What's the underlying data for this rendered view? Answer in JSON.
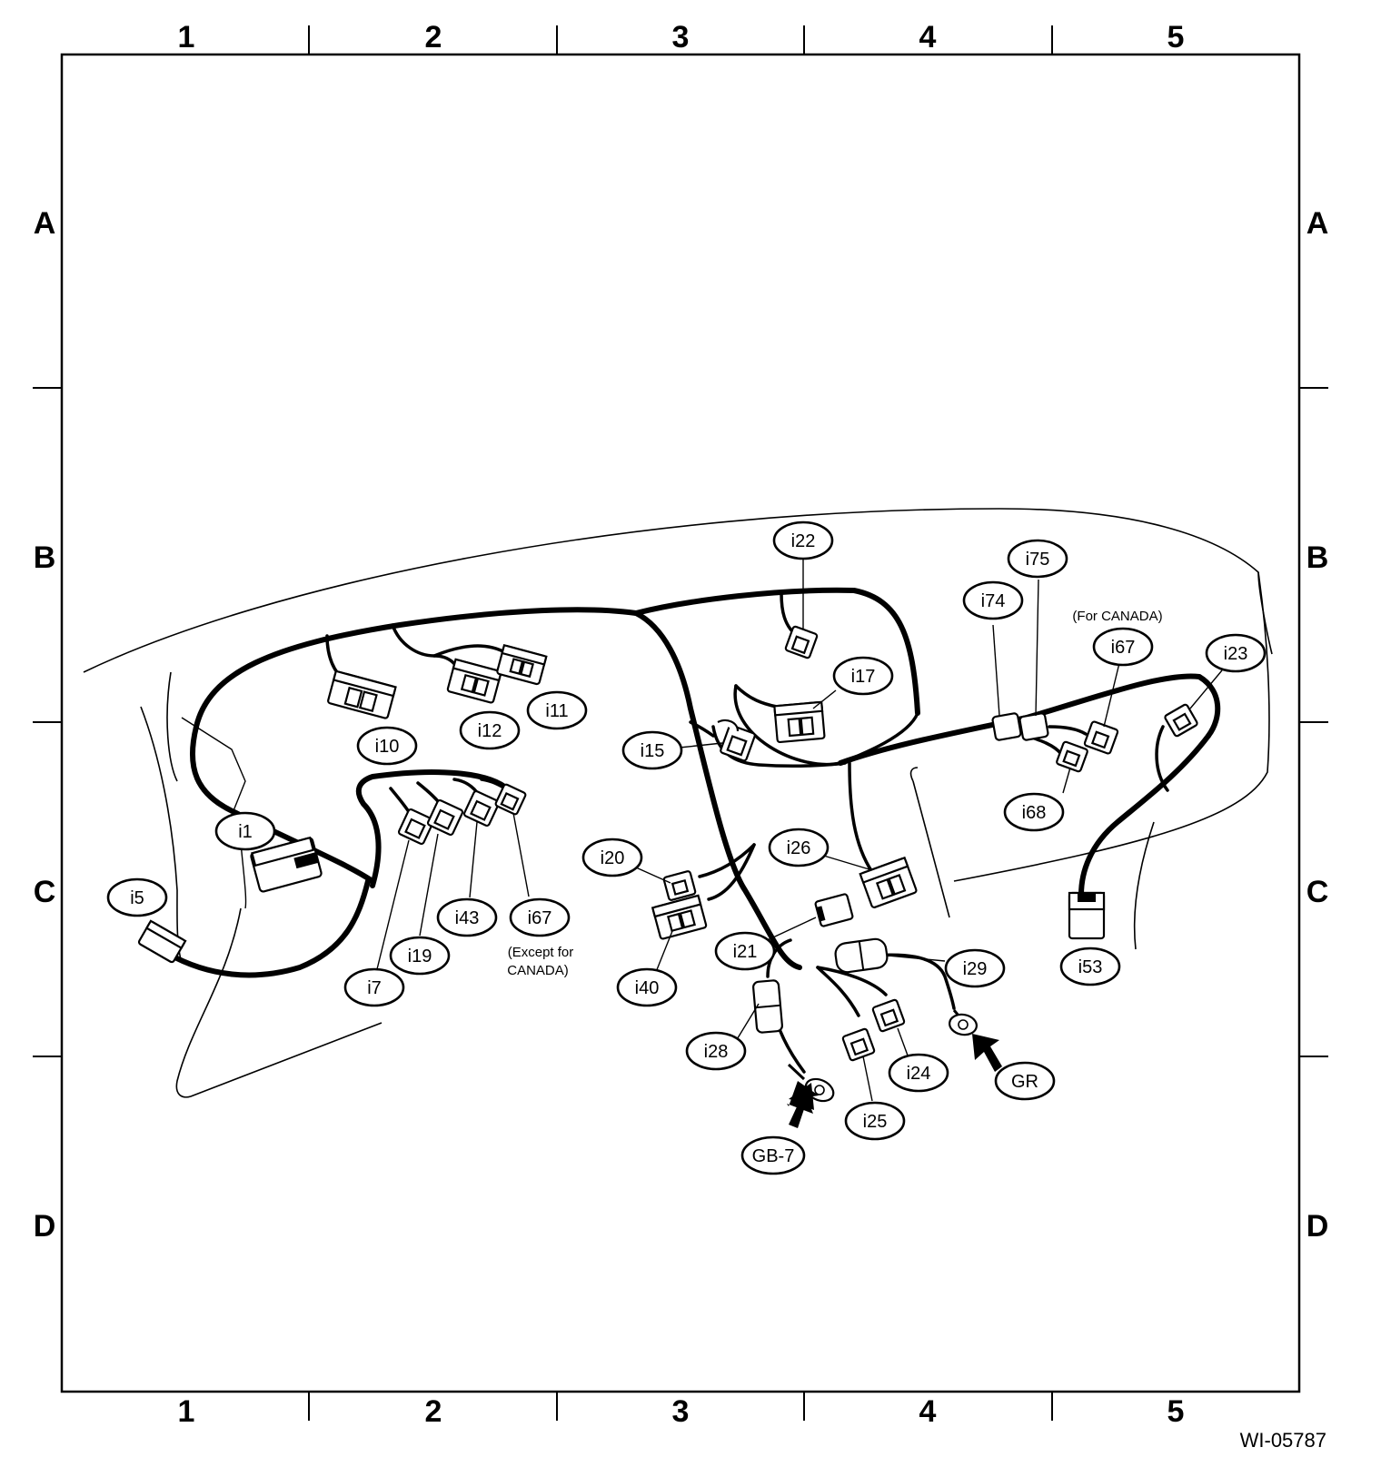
{
  "grid": {
    "columns": [
      "1",
      "2",
      "3",
      "4",
      "5"
    ],
    "rows": [
      "A",
      "B",
      "C",
      "D"
    ]
  },
  "labels": {
    "i1": "i1",
    "i5": "i5",
    "i7": "i7",
    "i10": "i10",
    "i11": "i11",
    "i12": "i12",
    "i15": "i15",
    "i17": "i17",
    "i19": "i19",
    "i20": "i20",
    "i21": "i21",
    "i22": "i22",
    "i23": "i23",
    "i24": "i24",
    "i25": "i25",
    "i26": "i26",
    "i28": "i28",
    "i29": "i29",
    "i40": "i40",
    "i43": "i43",
    "i53": "i53",
    "i67_left": "i67",
    "i67_right": "i67",
    "i68": "i68",
    "i74": "i74",
    "i75": "i75",
    "gb7": "GB-7",
    "gr": "GR"
  },
  "notes": {
    "except_canada_line1": "(Except for",
    "except_canada_line2": "CANADA)",
    "for_canada": "(For CANADA)"
  },
  "figure_id": "WI-05787"
}
